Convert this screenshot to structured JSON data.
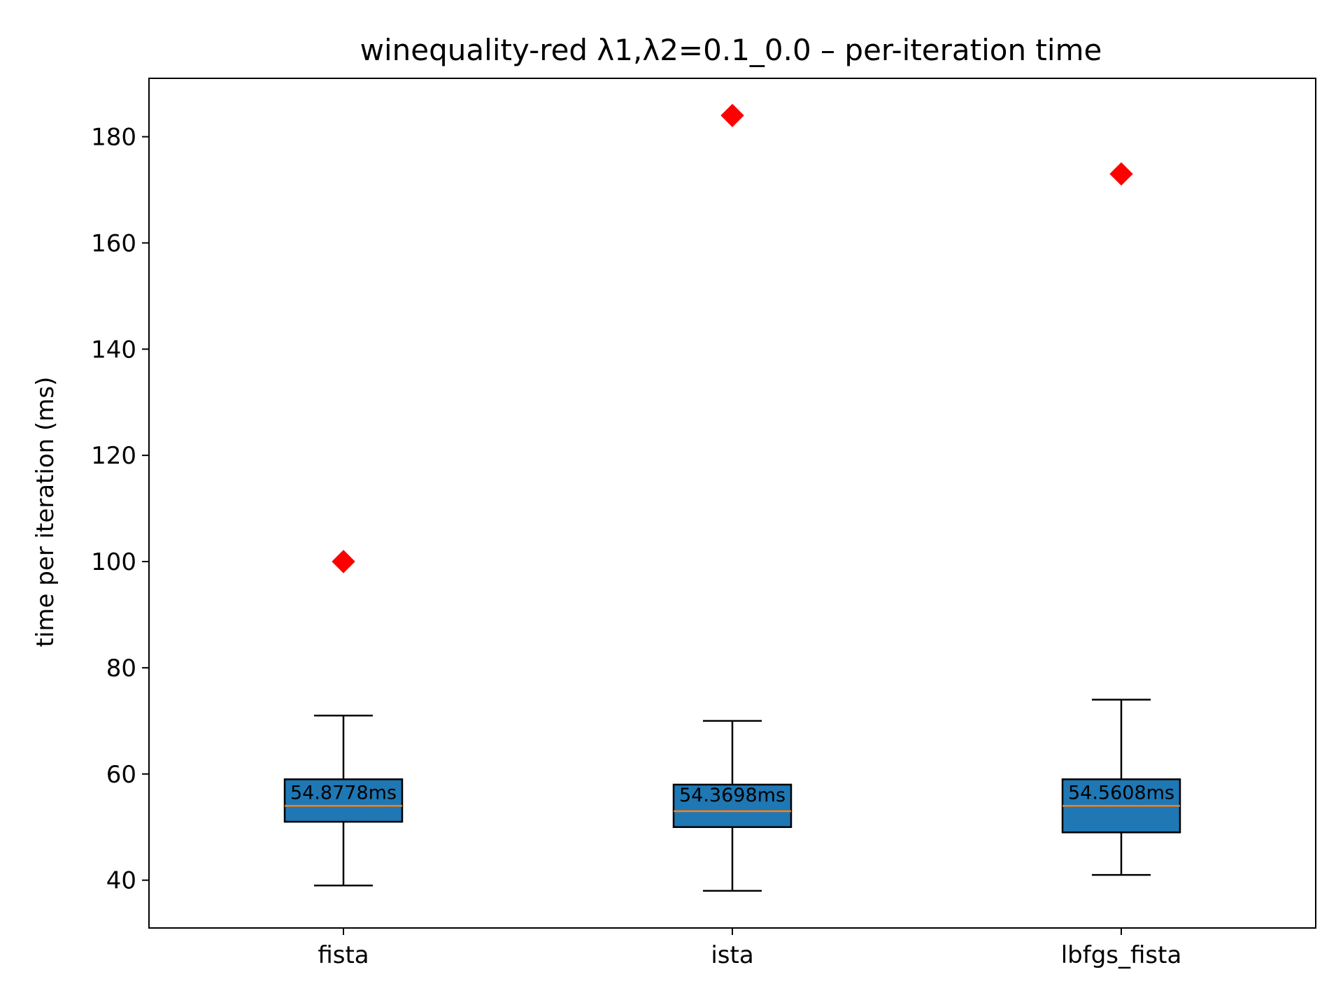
{
  "chart_data": {
    "type": "box",
    "title": "winequality-red   λ1,λ2=0.1_0.0  –  per-iteration time",
    "xlabel": "",
    "ylabel": "time per iteration (ms)",
    "ylim": [
      31,
      191
    ],
    "yticks": [
      40,
      60,
      80,
      100,
      120,
      140,
      160,
      180
    ],
    "grid": false,
    "categories": [
      "fista",
      "ista",
      "lbfgs_fista"
    ],
    "boxes": [
      {
        "category": "fista",
        "whisker_low": 39,
        "q1": 51,
        "median": 54,
        "q3": 59,
        "whisker_high": 71,
        "outliers": [
          100
        ],
        "label": "54.8778ms",
        "label_value": 56.5
      },
      {
        "category": "ista",
        "whisker_low": 38,
        "q1": 50,
        "median": 53,
        "q3": 58,
        "whisker_high": 70,
        "outliers": [
          184
        ],
        "label": "54.3698ms",
        "label_value": 56
      },
      {
        "category": "lbfgs_fista",
        "whisker_low": 41,
        "q1": 49,
        "median": 54,
        "q3": 59,
        "whisker_high": 74,
        "outliers": [
          173
        ],
        "label": "54.5608ms",
        "label_value": 56.5
      }
    ],
    "colors": {
      "box_fill": "#1f77b4",
      "median": "#ff7f0e",
      "outlier": "#ff0000",
      "line": "#000000"
    },
    "outlier_marker": "diamond"
  }
}
